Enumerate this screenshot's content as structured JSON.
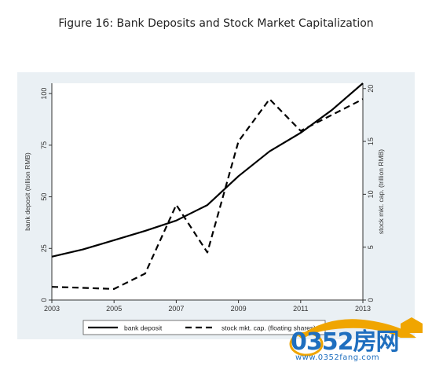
{
  "page": {
    "title": "Figure 16: Bank Deposits and Stock Market Capitalization"
  },
  "chart_data": {
    "type": "line",
    "title": "Figure 16: Bank Deposits and Stock Market Capitalization",
    "x": [
      2003,
      2004,
      2005,
      2006,
      2007,
      2008,
      2009,
      2010,
      2011,
      2012,
      2013
    ],
    "xlim": [
      2003,
      2013
    ],
    "xticks": [
      2003,
      2005,
      2007,
      2009,
      2011,
      2013
    ],
    "left_axis": {
      "label": "bank deposit (trillion RMB)",
      "ylim": [
        0,
        105
      ],
      "ticks": [
        0,
        25,
        50,
        75,
        100
      ]
    },
    "right_axis": {
      "label": "stock mkt. cap. (trillion RMB)",
      "ylim": [
        0,
        20.5
      ],
      "ticks": [
        0,
        5,
        10,
        15,
        20
      ]
    },
    "series": [
      {
        "name": "bank deposit",
        "axis": "left",
        "style": "solid",
        "color": "#000000",
        "values": [
          21,
          24.5,
          29,
          33.5,
          38.5,
          46,
          60,
          72,
          81,
          92,
          105
        ]
      },
      {
        "name": "stock mkt. cap. (floating shares)",
        "axis": "right",
        "style": "dashed",
        "color": "#000000",
        "values": [
          1.25,
          1.15,
          1.05,
          2.5,
          9,
          4.5,
          15,
          19,
          16,
          17.5,
          19
        ]
      }
    ],
    "legend_position": "bottom",
    "grid": false
  },
  "watermark": {
    "brand": "0352房网",
    "url": "www.0352fang.com"
  }
}
